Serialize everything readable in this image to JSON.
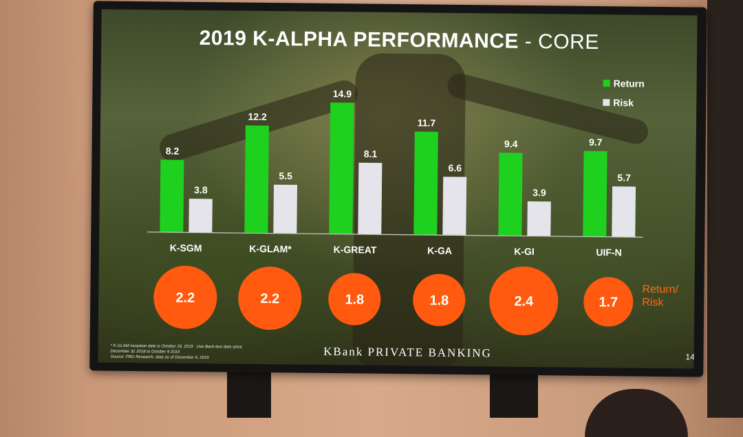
{
  "slide": {
    "title_main": "2019 K-ALPHA PERFORMANCE",
    "title_sub": "- CORE",
    "footer_brand": "KBank PRIVATE BANKING",
    "page_number": "14",
    "footnote_lines": [
      "* K-GLAM inception date is October 18, 2019 . Use Back-test data since",
      "December 31 2018 to October 9 2019",
      "Source: PBO Research, data as of December 6, 2019"
    ],
    "ratio_label_line1": "Return/",
    "ratio_label_line2": "Risk"
  },
  "colors": {
    "return": "#1fd11f",
    "risk": "#e4e4ea",
    "ratio_circle": "#ff5a0f",
    "ratio_label": "#ff6a14"
  },
  "chart_data": {
    "type": "bar",
    "title": "2019 K-ALPHA PERFORMANCE - CORE",
    "categories": [
      "K-SGM",
      "K-GLAM*",
      "K-GREAT",
      "K-GA",
      "K-GI",
      "UIF-N"
    ],
    "series": [
      {
        "name": "Return",
        "values": [
          8.2,
          12.2,
          14.9,
          11.7,
          9.4,
          9.7
        ]
      },
      {
        "name": "Risk",
        "values": [
          3.8,
          5.5,
          8.1,
          6.6,
          3.9,
          5.7
        ]
      }
    ],
    "ratio_series": {
      "name": "Return/Risk",
      "values": [
        "2.2",
        "2.2",
        "1.8",
        "1.8",
        "2.4",
        "1.7"
      ]
    },
    "legend_position": "top-right",
    "grid": false,
    "ylim": [
      0,
      15
    ]
  }
}
